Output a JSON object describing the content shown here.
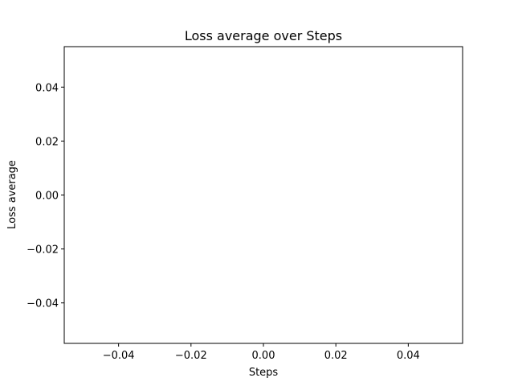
{
  "chart_data": {
    "type": "line",
    "title": "Loss average over Steps",
    "xlabel": "Steps",
    "ylabel": "Loss average",
    "xlim": [
      -0.055,
      0.055
    ],
    "ylim": [
      -0.055,
      0.055
    ],
    "xticks": [
      -0.04,
      -0.02,
      0.0,
      0.02,
      0.04
    ],
    "xtick_labels": [
      "−0.04",
      "−0.02",
      "0.00",
      "0.02",
      "0.04"
    ],
    "yticks": [
      -0.04,
      -0.02,
      0.0,
      0.02,
      0.04
    ],
    "ytick_labels": [
      "−0.04",
      "−0.02",
      "0.00",
      "0.02",
      "0.04"
    ],
    "grid": false,
    "series": [
      {
        "x": [],
        "y": []
      }
    ]
  }
}
